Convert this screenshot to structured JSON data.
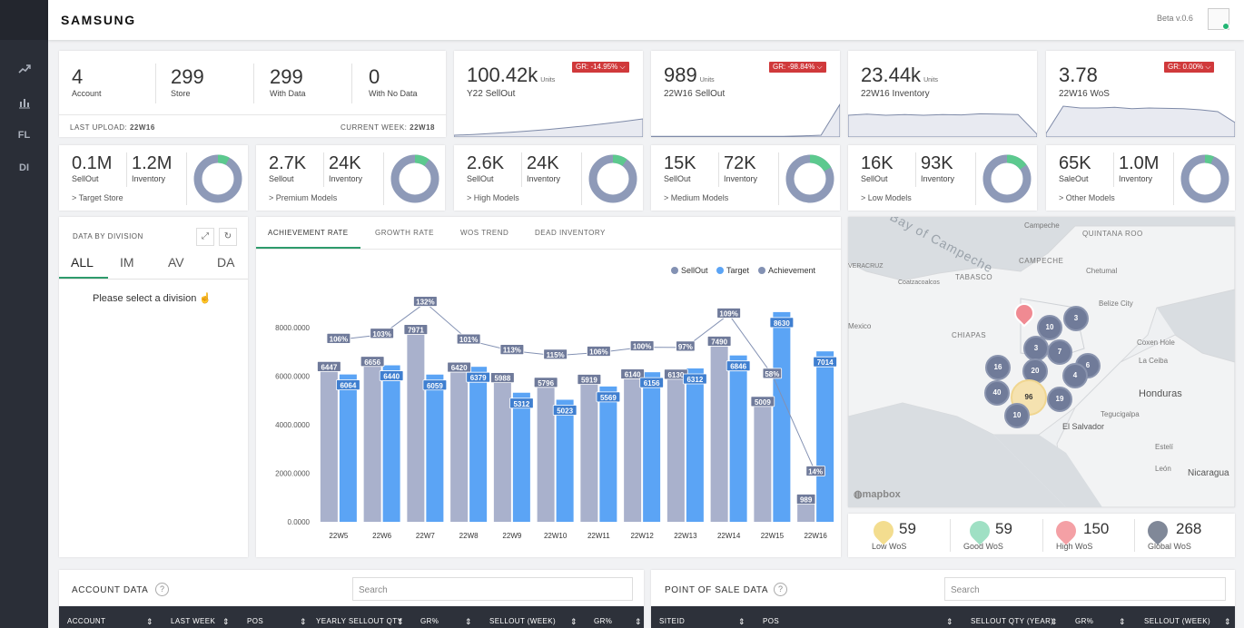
{
  "app": {
    "logo": "SAMSUNG",
    "version": "Beta v.0.6"
  },
  "sidebar": {
    "items": [
      {
        "icon": "trend-icon",
        "label": ""
      },
      {
        "icon": "chart-icon",
        "label": ""
      },
      {
        "icon": "",
        "label": "FL"
      },
      {
        "icon": "",
        "label": "DI"
      }
    ]
  },
  "summary": {
    "stats": [
      {
        "value": "4",
        "label": "Account"
      },
      {
        "value": "299",
        "label": "Store"
      },
      {
        "value": "299",
        "label": "With Data"
      },
      {
        "value": "0",
        "label": "With No Data"
      }
    ],
    "last_upload_label": "LAST UPLOAD:",
    "last_upload": "22W16",
    "current_week_label": "CURRENT WEEK:",
    "current_week": "22W18"
  },
  "kpis": [
    {
      "value": "100.42k",
      "unit": "Units",
      "label": "Y22 SellOut",
      "gr": "GR: -14.95%",
      "trend": [
        0.05,
        0.07,
        0.1,
        0.13,
        0.17,
        0.21,
        0.26,
        0.31,
        0.37,
        0.43,
        0.5
      ]
    },
    {
      "value": "989",
      "unit": "Units",
      "label": "22W16 SellOut",
      "gr": "GR: -98.84%",
      "trend": [
        0.02,
        0.02,
        0.02,
        0.02,
        0.02,
        0.02,
        0.02,
        0.02,
        0.03,
        0.05,
        0.9
      ]
    },
    {
      "value": "23.44k",
      "unit": "Units",
      "label": "22W16 Inventory",
      "gr": "",
      "trend": [
        0.6,
        0.63,
        0.6,
        0.62,
        0.6,
        0.62,
        0.61,
        0.64,
        0.63,
        0.62,
        0.08
      ]
    },
    {
      "value": "3.78",
      "unit": "",
      "label": "22W16 WoS",
      "gr": "GR: 0.00%",
      "trend": [
        0.1,
        0.85,
        0.8,
        0.8,
        0.82,
        0.78,
        0.8,
        0.79,
        0.78,
        0.75,
        0.7,
        0.4
      ]
    }
  ],
  "segments": [
    {
      "sellout": "0.1M",
      "sellout_label": "SellOut",
      "inventory": "1.2M",
      "inventory_label": "Inventory",
      "link": "Target Store",
      "ratio": 0.08
    },
    {
      "sellout": "2.7K",
      "sellout_label": "Sellout",
      "inventory": "24K",
      "inventory_label": "Inventory",
      "link": "Premium Models",
      "ratio": 0.1
    },
    {
      "sellout": "2.6K",
      "sellout_label": "SellOut",
      "inventory": "24K",
      "inventory_label": "Inventory",
      "link": "High Models",
      "ratio": 0.1
    },
    {
      "sellout": "15K",
      "sellout_label": "SellOut",
      "inventory": "72K",
      "inventory_label": "Inventory",
      "link": "Medium Models",
      "ratio": 0.17
    },
    {
      "sellout": "16K",
      "sellout_label": "SellOut",
      "inventory": "93K",
      "inventory_label": "Inventory",
      "link": "Low Models",
      "ratio": 0.15
    },
    {
      "sellout": "65K",
      "sellout_label": "SaleOut",
      "inventory": "1.0M",
      "inventory_label": "Inventory",
      "link": "Other Models",
      "ratio": 0.06
    }
  ],
  "division": {
    "title": "DATA BY DIVISION",
    "tabs": [
      "ALL",
      "IM",
      "AV",
      "DA"
    ],
    "message": "Please select a division"
  },
  "chart_tabs": [
    "ACHIEVEMENT RATE",
    "GROWTH RATE",
    "WOS TREND",
    "DEAD INVENTORY"
  ],
  "chart_data": {
    "type": "bar",
    "categories": [
      "22W5",
      "22W6",
      "22W7",
      "22W8",
      "22W9",
      "22W10",
      "22W11",
      "22W12",
      "22W13",
      "22W14",
      "22W15",
      "22W16"
    ],
    "series": [
      {
        "name": "SellOut",
        "values": [
          6447,
          6656,
          7971,
          6420,
          5988,
          5796,
          5919,
          6140,
          6130,
          7490,
          5009,
          989
        ]
      },
      {
        "name": "Target",
        "values": [
          6064,
          6440,
          6059,
          6379,
          5312,
          5023,
          5569,
          6156,
          6312,
          6846,
          8630,
          7014
        ]
      },
      {
        "name": "Achievement",
        "values": [
          106,
          103,
          132,
          101,
          113,
          115,
          106,
          100,
          97,
          109,
          58,
          14
        ]
      }
    ],
    "value_labels_sellout": [
      "6447",
      "6656",
      "7971",
      "6420",
      "5988",
      "5796",
      "5919",
      "6140",
      "6130",
      "7490",
      "5009",
      "989"
    ],
    "value_labels_target": [
      "6064",
      "6440",
      "6059",
      "6379",
      "5312",
      "5023",
      "5569",
      "6156",
      "6312",
      "6846",
      "8630",
      "7014"
    ],
    "achievement_labels": [
      "106%",
      "103%",
      "132%",
      "101%",
      "113%",
      "115%",
      "106%",
      "100%",
      "97%",
      "109%",
      "58%",
      "14%"
    ],
    "yticks": [
      "8000.0000",
      "6000.0000",
      "4000.0000",
      "2000.0000",
      "0.0000"
    ],
    "ylim": [
      0,
      9000
    ],
    "legend": [
      "SellOut",
      "Target",
      "Achievement"
    ],
    "colors": {
      "sellout": "#a9b1cc",
      "target": "#5ba4f5",
      "achievement": "#8391b3"
    }
  },
  "map": {
    "labels": [
      "Bay of Campeche",
      "Campeche",
      "CAMPECHE",
      "QUINTANA ROO",
      "Chetumal",
      "TABASCO",
      "Coatzacoalcos",
      "Belize City",
      "CHIAPAS",
      "Mexico",
      "Coxen Hole",
      "La Ceiba",
      "Honduras",
      "Tegucigalpa",
      "El Salvador",
      "Estelí",
      "León",
      "Nicaragua",
      "VERACRUZ"
    ],
    "clusters": [
      "10",
      "3",
      "3",
      "7",
      "16",
      "20",
      "6",
      "4",
      "40",
      "96",
      "19",
      "10"
    ],
    "attribution": "mapbox"
  },
  "wos": [
    {
      "value": "59",
      "label": "Low WoS",
      "color": "#f3dd8f"
    },
    {
      "value": "59",
      "label": "Good WoS",
      "color": "#9fe0c4"
    },
    {
      "value": "150",
      "label": "High WoS",
      "color": "#f4a0a5"
    },
    {
      "value": "268",
      "label": "Global WoS",
      "color": "#808898"
    }
  ],
  "account": {
    "title": "ACCOUNT DATA",
    "search": "Search",
    "columns": [
      "ACCOUNT",
      "LAST WEEK",
      "POS",
      "YEARLY SELLOUT QTY",
      "GR%",
      "SELLOUT (WEEK)",
      "GR%"
    ]
  },
  "pos": {
    "title": "POINT OF SALE DATA",
    "search": "Search",
    "columns": [
      "SITEID",
      "POS",
      "SELLOUT QTY (YEAR)",
      "GR%",
      "SELLOUT (WEEK)"
    ]
  }
}
